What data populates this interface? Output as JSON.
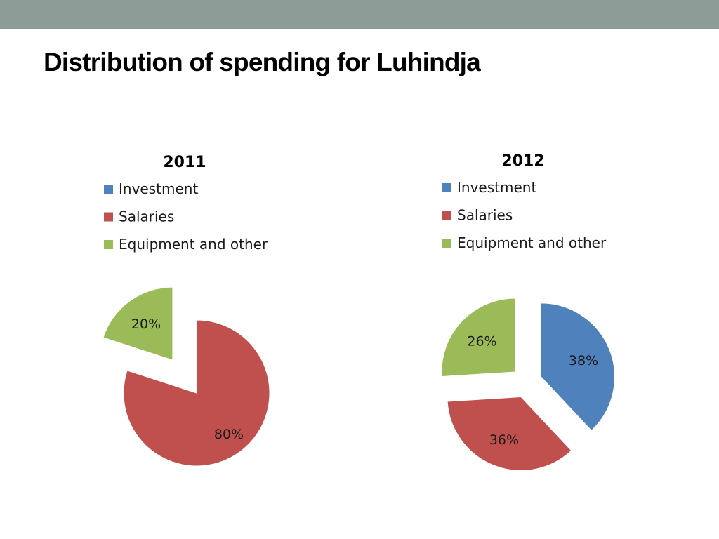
{
  "slide": {
    "title": "Distribution of spending for Luhindja"
  },
  "chart_data": [
    {
      "type": "pie",
      "title": "2011",
      "legend_position": "top",
      "exploded": true,
      "slices": [
        {
          "name": "Investment",
          "value": 0,
          "label": "",
          "color": "#4f81bd"
        },
        {
          "name": "Salaries",
          "value": 80,
          "label": "80%",
          "color": "#c0504d"
        },
        {
          "name": "Equipment and other",
          "value": 20,
          "label": "20%",
          "color": "#9bbb59"
        }
      ]
    },
    {
      "type": "pie",
      "title": "2012",
      "legend_position": "top",
      "exploded": true,
      "slices": [
        {
          "name": "Investment",
          "value": 38,
          "label": "38%",
          "color": "#4f81bd"
        },
        {
          "name": "Salaries",
          "value": 36,
          "label": "36%",
          "color": "#c0504d"
        },
        {
          "name": "Equipment and other",
          "value": 26,
          "label": "26%",
          "color": "#9bbb59"
        }
      ]
    }
  ]
}
